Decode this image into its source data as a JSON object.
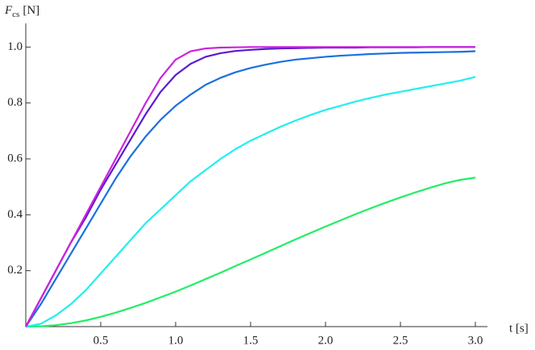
{
  "chart_data": {
    "type": "line",
    "ylabel": {
      "symbol": "F",
      "subscript": "cs",
      "unit": "[N]"
    },
    "xlabel": "t [s]",
    "x": [
      0,
      0.1,
      0.2,
      0.3,
      0.4,
      0.5,
      0.6,
      0.7,
      0.8,
      0.9,
      1.0,
      1.1,
      1.2,
      1.3,
      1.4,
      1.5,
      1.6,
      1.7,
      1.8,
      1.9,
      2.0,
      2.1,
      2.2,
      2.3,
      2.4,
      2.5,
      2.6,
      2.7,
      2.8,
      2.9,
      3.0
    ],
    "series": [
      {
        "color": "#22ee66",
        "values": [
          0,
          0.001,
          0.005,
          0.012,
          0.022,
          0.035,
          0.05,
          0.067,
          0.085,
          0.105,
          0.125,
          0.147,
          0.17,
          0.193,
          0.217,
          0.24,
          0.264,
          0.288,
          0.312,
          0.335,
          0.358,
          0.38,
          0.402,
          0.423,
          0.443,
          0.462,
          0.48,
          0.497,
          0.513,
          0.525,
          0.533
        ]
      },
      {
        "color": "#22eeee",
        "values": [
          0,
          0.01,
          0.04,
          0.08,
          0.13,
          0.19,
          0.25,
          0.31,
          0.37,
          0.42,
          0.47,
          0.52,
          0.56,
          0.6,
          0.635,
          0.665,
          0.69,
          0.715,
          0.737,
          0.757,
          0.775,
          0.79,
          0.805,
          0.818,
          0.83,
          0.84,
          0.85,
          0.86,
          0.87,
          0.88,
          0.893
        ]
      },
      {
        "color": "#1a70e0",
        "values": [
          0,
          0.08,
          0.17,
          0.26,
          0.35,
          0.44,
          0.53,
          0.61,
          0.68,
          0.74,
          0.79,
          0.83,
          0.865,
          0.89,
          0.91,
          0.925,
          0.937,
          0.947,
          0.955,
          0.96,
          0.965,
          0.969,
          0.972,
          0.975,
          0.977,
          0.979,
          0.98,
          0.981,
          0.982,
          0.983,
          0.985
        ]
      },
      {
        "color": "#5a1ad0",
        "values": [
          0,
          0.1,
          0.2,
          0.3,
          0.39,
          0.49,
          0.58,
          0.67,
          0.76,
          0.84,
          0.9,
          0.94,
          0.965,
          0.978,
          0.986,
          0.99,
          0.993,
          0.995,
          0.996,
          0.997,
          0.998,
          0.998,
          0.998,
          0.999,
          0.999,
          0.999,
          0.999,
          1,
          1,
          1,
          1
        ]
      },
      {
        "color": "#cc22dd",
        "values": [
          0,
          0.1,
          0.2,
          0.3,
          0.4,
          0.5,
          0.6,
          0.7,
          0.8,
          0.89,
          0.955,
          0.985,
          0.995,
          0.998,
          0.999,
          1,
          1,
          1,
          1,
          1,
          1,
          1,
          1,
          1,
          1,
          1,
          1,
          1,
          1,
          1,
          1
        ]
      }
    ],
    "xlim": [
      0,
      3
    ],
    "ylim": [
      0,
      1.05
    ],
    "xticks": [
      0.5,
      {
        "value": 1,
        "label": "1.0"
      },
      1.5,
      {
        "value": 2,
        "label": "2.0"
      },
      2.5,
      {
        "value": 3,
        "label": "3.0"
      }
    ],
    "yticks": [
      0.2,
      0.4,
      0.6,
      0.8,
      {
        "value": 1,
        "label": "1.0"
      }
    ]
  }
}
